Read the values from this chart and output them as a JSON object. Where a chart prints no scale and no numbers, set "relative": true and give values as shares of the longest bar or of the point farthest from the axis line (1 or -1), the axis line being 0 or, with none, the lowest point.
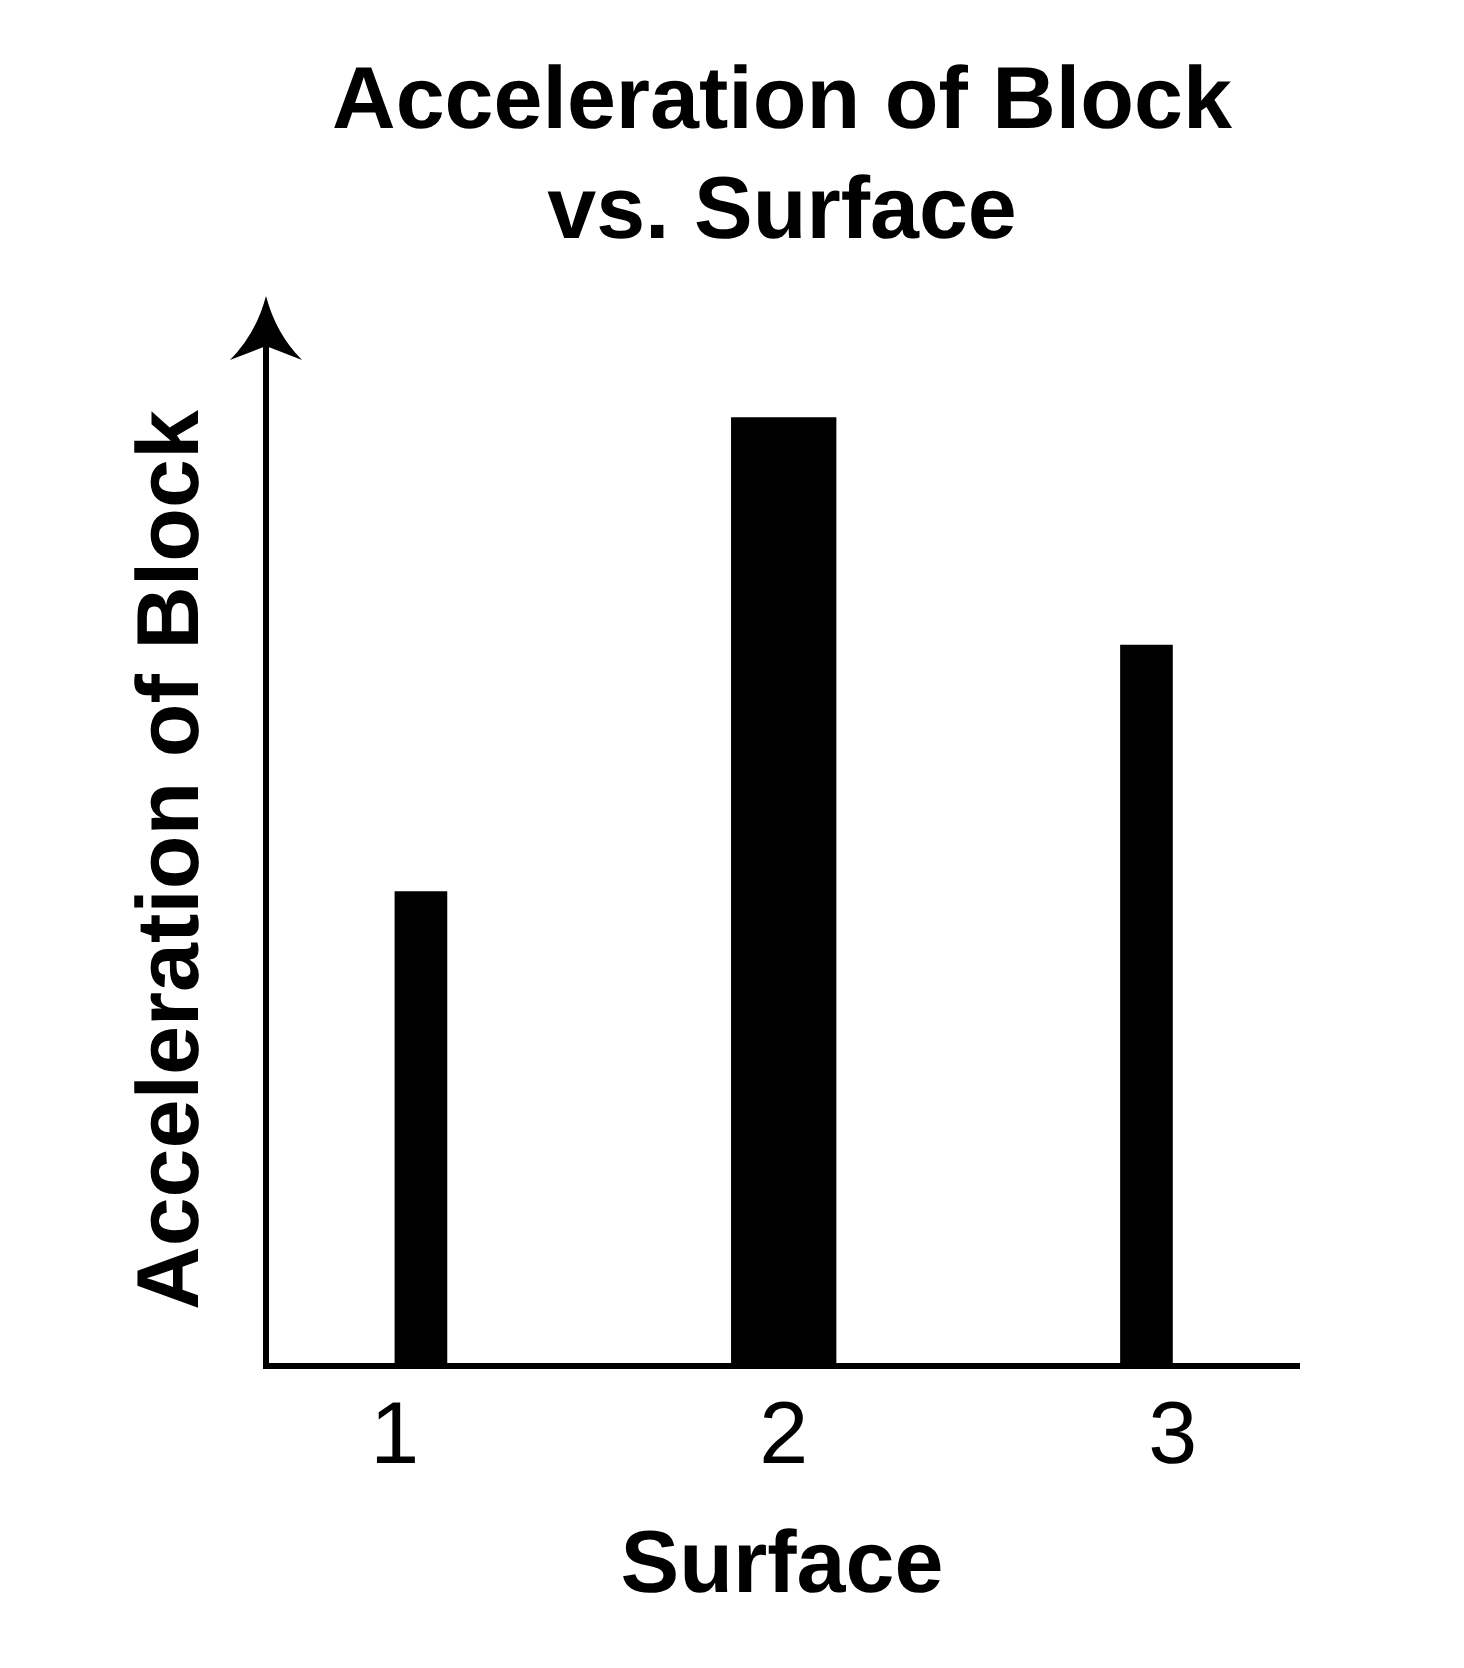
{
  "chart_data": {
    "type": "bar",
    "title": "Acceleration of Block vs. Surface",
    "xlabel": "Surface",
    "ylabel": "Acceleration of Block",
    "categories": [
      "1",
      "2",
      "3"
    ],
    "values": [
      0.5,
      1,
      0.76
    ],
    "color": "#000000",
    "relative": true
  }
}
